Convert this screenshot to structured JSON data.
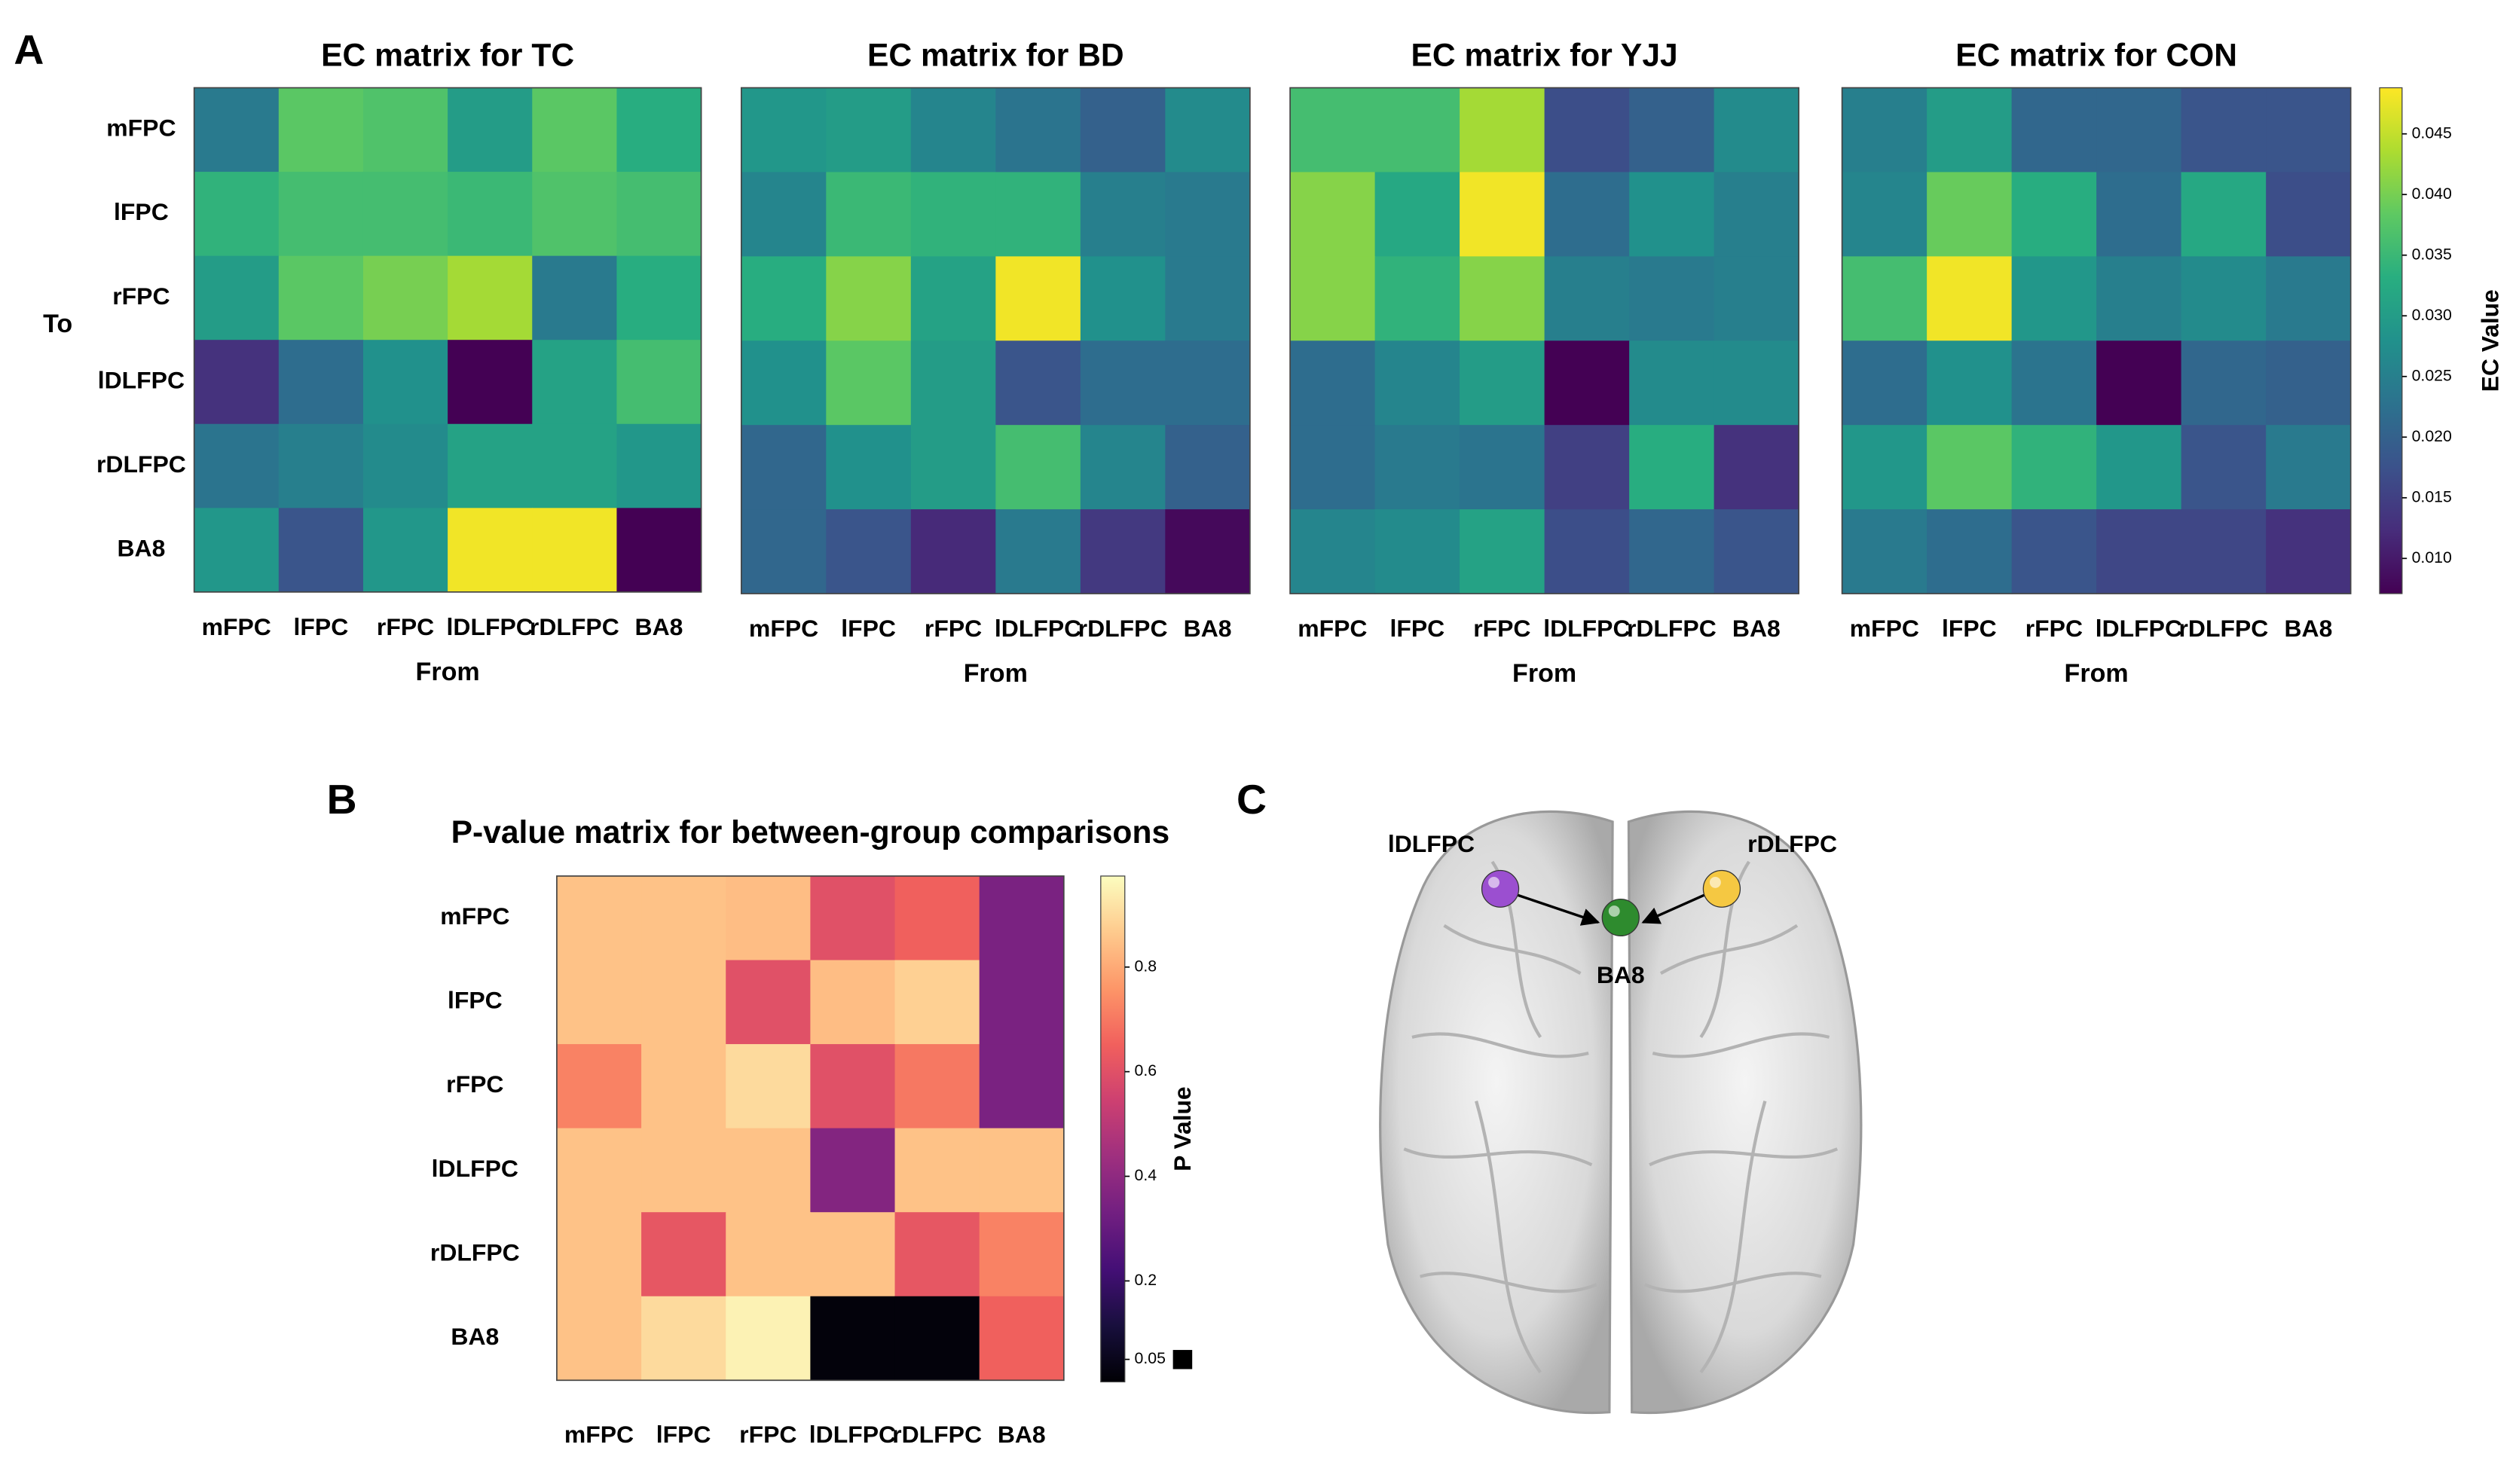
{
  "chart_data": [
    {
      "type": "heatmap",
      "panel_label": "A",
      "title": "EC matrix for TC",
      "x_categories": [
        "mFPC",
        "lFPC",
        "rFPC",
        "lDLFPC",
        "rDLFPC",
        "BA8"
      ],
      "y_categories": [
        "mFPC",
        "lFPC",
        "rFPC",
        "lDLFPC",
        "rDLFPC",
        "BA8"
      ],
      "xlabel": "From",
      "ylabel": "To",
      "colormap": "viridis",
      "clim": [
        0.0071,
        0.0488
      ],
      "values": [
        [
          0.024,
          0.038,
          0.037,
          0.03,
          0.038,
          0.033
        ],
        [
          0.034,
          0.036,
          0.036,
          0.035,
          0.037,
          0.036
        ],
        [
          0.03,
          0.038,
          0.04,
          0.043,
          0.024,
          0.033
        ],
        [
          0.013,
          0.022,
          0.028,
          0.007,
          0.031,
          0.036
        ],
        [
          0.023,
          0.025,
          0.027,
          0.031,
          0.031,
          0.029
        ],
        [
          0.029,
          0.018,
          0.029,
          0.048,
          0.048,
          0.007
        ]
      ]
    },
    {
      "type": "heatmap",
      "title": "EC matrix for BD",
      "x_categories": [
        "mFPC",
        "lFPC",
        "rFPC",
        "lDLFPC",
        "rDLFPC",
        "BA8"
      ],
      "xlabel": "From",
      "colormap": "viridis",
      "clim": [
        0.0071,
        0.0488
      ],
      "values": [
        [
          0.029,
          0.03,
          0.026,
          0.023,
          0.02,
          0.027
        ],
        [
          0.026,
          0.035,
          0.034,
          0.034,
          0.025,
          0.024
        ],
        [
          0.033,
          0.041,
          0.031,
          0.048,
          0.028,
          0.024
        ],
        [
          0.028,
          0.038,
          0.03,
          0.018,
          0.022,
          0.022
        ],
        [
          0.021,
          0.028,
          0.03,
          0.036,
          0.026,
          0.02
        ],
        [
          0.021,
          0.018,
          0.012,
          0.024,
          0.014,
          0.008
        ]
      ]
    },
    {
      "type": "heatmap",
      "title": "EC matrix for YJJ",
      "x_categories": [
        "mFPC",
        "lFPC",
        "rFPC",
        "lDLFPC",
        "rDLFPC",
        "BA8"
      ],
      "xlabel": "From",
      "colormap": "viridis",
      "clim": [
        0.0071,
        0.0488
      ],
      "values": [
        [
          0.036,
          0.036,
          0.043,
          0.017,
          0.02,
          0.027
        ],
        [
          0.041,
          0.032,
          0.048,
          0.022,
          0.028,
          0.025
        ],
        [
          0.041,
          0.034,
          0.041,
          0.025,
          0.024,
          0.025
        ],
        [
          0.022,
          0.026,
          0.03,
          0.007,
          0.027,
          0.027
        ],
        [
          0.022,
          0.024,
          0.023,
          0.015,
          0.033,
          0.013
        ],
        [
          0.026,
          0.027,
          0.031,
          0.017,
          0.021,
          0.018
        ]
      ]
    },
    {
      "type": "heatmap",
      "title": "EC matrix for CON",
      "x_categories": [
        "mFPC",
        "lFPC",
        "rFPC",
        "lDLFPC",
        "rDLFPC",
        "BA8"
      ],
      "xlabel": "From",
      "colormap": "viridis",
      "clim": [
        0.0071,
        0.0488
      ],
      "values": [
        [
          0.025,
          0.03,
          0.021,
          0.021,
          0.018,
          0.018
        ],
        [
          0.026,
          0.039,
          0.033,
          0.022,
          0.032,
          0.017
        ],
        [
          0.036,
          0.048,
          0.029,
          0.025,
          0.027,
          0.024
        ],
        [
          0.022,
          0.028,
          0.023,
          0.007,
          0.021,
          0.02
        ],
        [
          0.029,
          0.038,
          0.034,
          0.029,
          0.018,
          0.024
        ],
        [
          0.024,
          0.022,
          0.018,
          0.016,
          0.016,
          0.013
        ]
      ],
      "colorbar": {
        "label": "EC Value",
        "ticks": [
          {
            "value": 0.01,
            "label": "0.010"
          },
          0.015,
          {
            "value": 0.02,
            "label": "0.020"
          },
          0.025,
          {
            "value": 0.03,
            "label": "0.030"
          },
          0.035,
          {
            "value": 0.04,
            "label": "0.040"
          },
          0.045
        ]
      }
    },
    {
      "type": "heatmap",
      "panel_label": "B",
      "title": "P-value matrix for between-group comparisons",
      "x_categories": [
        "mFPC",
        "lFPC",
        "rFPC",
        "lDLFPC",
        "rDLFPC",
        "BA8"
      ],
      "y_categories": [
        "mFPC",
        "lFPC",
        "rFPC",
        "lDLFPC",
        "rDLFPC",
        "BA8"
      ],
      "colormap": "magma",
      "clim": [
        0.007,
        0.974
      ],
      "values": [
        [
          0.85,
          0.85,
          0.84,
          0.6,
          0.65,
          0.35
        ],
        [
          0.85,
          0.85,
          0.6,
          0.84,
          0.88,
          0.35
        ],
        [
          0.72,
          0.85,
          0.9,
          0.6,
          0.7,
          0.35
        ],
        [
          0.85,
          0.85,
          0.85,
          0.37,
          0.85,
          0.85
        ],
        [
          0.85,
          0.62,
          0.85,
          0.85,
          0.62,
          0.72
        ],
        [
          0.85,
          0.9,
          0.95,
          0.02,
          0.02,
          0.65
        ]
      ],
      "colorbar": {
        "label": "P Value",
        "ticks": [
          0.05,
          0.2,
          0.4,
          0.6,
          0.8
        ]
      }
    }
  ],
  "diagram": {
    "panel_label": "C",
    "nodes": [
      {
        "label": "lDLFPC",
        "color": "#9b4fd0"
      },
      {
        "label": "rDLFPC",
        "color": "#f5c842"
      },
      {
        "label": "BA8",
        "color": "#2e8b2e"
      }
    ]
  }
}
